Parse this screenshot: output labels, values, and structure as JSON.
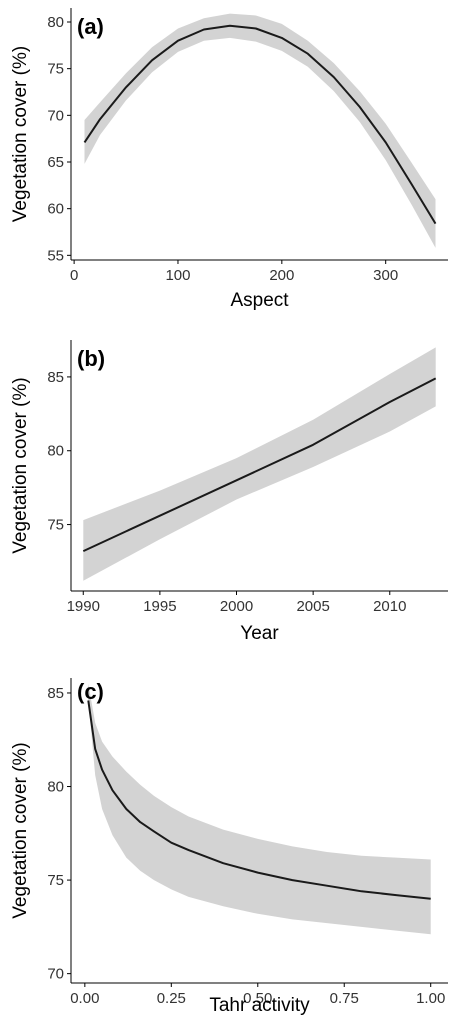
{
  "figure": {
    "ylabel": "Vegetation cover (%)",
    "colors": {
      "line": "#1a1a1a",
      "band": "#d3d3d3",
      "axis": "#000000",
      "ticktext": "#333333"
    }
  },
  "chart_data": [
    {
      "type": "line",
      "panel_label": "(a)",
      "title": "",
      "xlabel": "Aspect",
      "ylabel": "Vegetation cover (%)",
      "xlim": [
        -3,
        360
      ],
      "ylim": [
        54.5,
        81.5
      ],
      "grid": false,
      "xticks": [
        0,
        100,
        200,
        300
      ],
      "xtick_labels": [
        "0",
        "100",
        "200",
        "300"
      ],
      "yticks": [
        55,
        60,
        65,
        70,
        75,
        80
      ],
      "ytick_labels": [
        "55",
        "60",
        "65",
        "70",
        "75",
        "80"
      ],
      "series": [
        {
          "x": [
            10,
            25,
            50,
            75,
            100,
            125,
            150,
            175,
            200,
            225,
            250,
            275,
            300,
            325,
            348
          ],
          "y": [
            67.1,
            69.6,
            73.0,
            75.9,
            78.0,
            79.2,
            79.6,
            79.3,
            78.3,
            76.6,
            74.1,
            70.9,
            67.1,
            62.6,
            58.4
          ],
          "lower": [
            64.8,
            67.9,
            71.6,
            74.6,
            76.8,
            78.0,
            78.3,
            77.9,
            76.9,
            75.2,
            72.6,
            69.3,
            65.2,
            60.4,
            55.8
          ],
          "upper": [
            69.5,
            71.4,
            74.5,
            77.3,
            79.3,
            80.4,
            80.9,
            80.7,
            79.8,
            78.0,
            75.6,
            72.6,
            69.1,
            64.9,
            61.0
          ]
        }
      ]
    },
    {
      "type": "line",
      "panel_label": "(b)",
      "title": "",
      "xlabel": "Year",
      "ylabel": "Vegetation cover (%)",
      "xlim": [
        1989.2,
        2013.8
      ],
      "ylim": [
        70.5,
        87.5
      ],
      "grid": false,
      "xticks": [
        1990,
        1995,
        2000,
        2005,
        2010
      ],
      "xtick_labels": [
        "1990",
        "1995",
        "2000",
        "2005",
        "2010"
      ],
      "yticks": [
        75,
        80,
        85
      ],
      "ytick_labels": [
        "75",
        "80",
        "85"
      ],
      "series": [
        {
          "x": [
            1990,
            1995,
            2000,
            2005,
            2010,
            2013
          ],
          "y": [
            73.2,
            75.6,
            78.0,
            80.4,
            83.3,
            84.9
          ],
          "lower": [
            71.2,
            74.0,
            76.7,
            78.9,
            81.3,
            83.0
          ],
          "upper": [
            75.3,
            77.3,
            79.5,
            82.1,
            85.2,
            87.0
          ]
        }
      ]
    },
    {
      "type": "line",
      "panel_label": "(c)",
      "title": "",
      "xlabel": "Tahr activity",
      "ylabel": "Vegetation cover (%)",
      "xlim": [
        -0.04,
        1.05
      ],
      "ylim": [
        69.5,
        85.8
      ],
      "grid": false,
      "xticks": [
        0,
        0.25,
        0.5,
        0.75,
        1
      ],
      "xtick_labels": [
        "0.00",
        "0.25",
        "0.50",
        "0.75",
        "1.00"
      ],
      "yticks": [
        70,
        75,
        80,
        85
      ],
      "ytick_labels": [
        "70",
        "75",
        "80",
        "85"
      ],
      "series": [
        {
          "x": [
            0.01,
            0.03,
            0.05,
            0.08,
            0.12,
            0.16,
            0.2,
            0.25,
            0.3,
            0.4,
            0.5,
            0.6,
            0.7,
            0.8,
            0.9,
            1.0
          ],
          "y": [
            84.6,
            82.0,
            80.9,
            79.8,
            78.8,
            78.1,
            77.6,
            77.0,
            76.6,
            75.9,
            75.4,
            75.0,
            74.7,
            74.4,
            74.2,
            74.0
          ],
          "lower": [
            84.6,
            80.6,
            78.8,
            77.4,
            76.2,
            75.5,
            75.0,
            74.5,
            74.1,
            73.6,
            73.2,
            72.9,
            72.7,
            72.5,
            72.3,
            72.1
          ],
          "upper": [
            85.5,
            83.4,
            82.4,
            81.6,
            80.8,
            80.1,
            79.5,
            78.9,
            78.4,
            77.7,
            77.2,
            76.8,
            76.5,
            76.3,
            76.2,
            76.1
          ]
        }
      ]
    }
  ]
}
